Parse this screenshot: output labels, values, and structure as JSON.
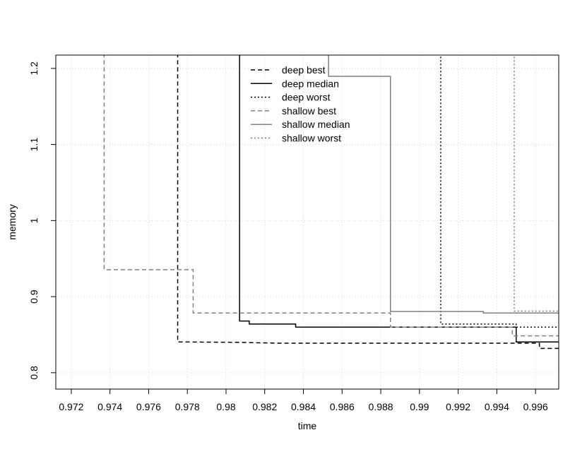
{
  "chart_data": {
    "type": "line",
    "title": "",
    "xlabel": "time",
    "ylabel": "memory",
    "xlim": [
      0.9712,
      0.9972
    ],
    "ylim": [
      0.7785,
      1.2175
    ],
    "x_ticks": [
      0.972,
      0.974,
      0.976,
      0.978,
      0.98,
      0.982,
      0.984,
      0.986,
      0.988,
      0.99,
      0.992,
      0.994,
      0.996
    ],
    "x_tick_labels": [
      "0.972",
      "0.974",
      "0.976",
      "0.978",
      "0.98",
      "0.982",
      "0.984",
      "0.986",
      "0.988",
      "0.99",
      "0.992",
      "0.994",
      "0.996"
    ],
    "y_ticks": [
      0.8,
      0.9,
      1.0,
      1.1,
      1.2
    ],
    "y_tick_labels": [
      "0.8",
      "0.9",
      "1",
      "1.1",
      "1.2"
    ],
    "grid": true,
    "legend_position": "top-center",
    "series": [
      {
        "name": "deep best",
        "color": "#000000",
        "dash": "dashed",
        "points": [
          [
            0.9775,
            1.22
          ],
          [
            0.9775,
            0.8405
          ],
          [
            0.9805,
            0.84
          ],
          [
            0.9828,
            0.8388
          ],
          [
            0.9962,
            0.8388
          ],
          [
            0.9962,
            0.832
          ],
          [
            0.9972,
            0.832
          ]
        ]
      },
      {
        "name": "deep median",
        "color": "#000000",
        "dash": "solid",
        "points": [
          [
            0.9807,
            1.22
          ],
          [
            0.9807,
            0.868
          ],
          [
            0.9812,
            0.868
          ],
          [
            0.9812,
            0.864
          ],
          [
            0.9836,
            0.864
          ],
          [
            0.9836,
            0.86
          ],
          [
            0.995,
            0.86
          ],
          [
            0.995,
            0.8405
          ],
          [
            0.9972,
            0.8405
          ]
        ]
      },
      {
        "name": "deep worst",
        "color": "#000000",
        "dash": "dotted",
        "points": [
          [
            0.9911,
            1.22
          ],
          [
            0.9911,
            0.864
          ],
          [
            0.995,
            0.864
          ],
          [
            0.995,
            0.86
          ],
          [
            0.9972,
            0.86
          ]
        ]
      },
      {
        "name": "shallow best",
        "color": "#808080",
        "dash": "dashed",
        "points": [
          [
            0.9737,
            1.22
          ],
          [
            0.9737,
            0.9355
          ],
          [
            0.9783,
            0.9355
          ],
          [
            0.9783,
            0.8785
          ],
          [
            0.9885,
            0.8785
          ],
          [
            0.9885,
            0.86
          ],
          [
            0.9948,
            0.86
          ],
          [
            0.9948,
            0.8485
          ],
          [
            0.9972,
            0.8485
          ]
        ]
      },
      {
        "name": "shallow median",
        "color": "#808080",
        "dash": "solid",
        "points": [
          [
            0.9853,
            1.22
          ],
          [
            0.9853,
            1.1895
          ],
          [
            0.9885,
            1.1895
          ],
          [
            0.9885,
            0.8805
          ],
          [
            0.9933,
            0.8805
          ],
          [
            0.9933,
            0.8785
          ],
          [
            0.9972,
            0.8785
          ]
        ]
      },
      {
        "name": "shallow worst",
        "color": "#808080",
        "dash": "dotted",
        "points": [
          [
            0.9949,
            1.22
          ],
          [
            0.9949,
            0.881
          ],
          [
            0.9972,
            0.881
          ]
        ]
      }
    ]
  }
}
